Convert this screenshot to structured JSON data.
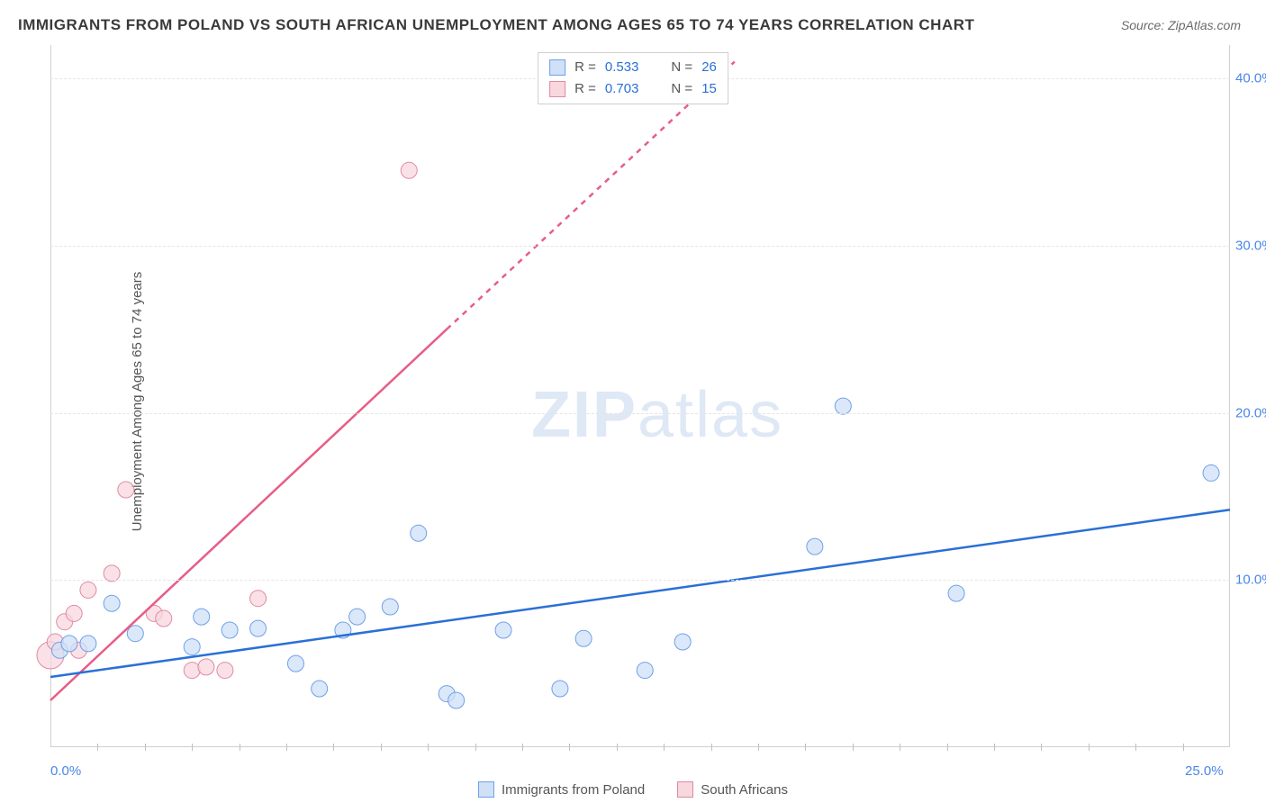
{
  "title": "IMMIGRANTS FROM POLAND VS SOUTH AFRICAN UNEMPLOYMENT AMONG AGES 65 TO 74 YEARS CORRELATION CHART",
  "source_prefix": "Source: ",
  "source_name": "ZipAtlas.com",
  "watermark": "ZIPatlas",
  "ylabel": "Unemployment Among Ages 65 to 74 years",
  "chart": {
    "type": "scatter",
    "xlim": [
      0,
      25
    ],
    "ylim": [
      0,
      42
    ],
    "xticks_minor": [
      1,
      2,
      3,
      4,
      5,
      6,
      7,
      8,
      9,
      10,
      11,
      12,
      13,
      14,
      15,
      16,
      17,
      18,
      19,
      20,
      21,
      22,
      23,
      24
    ],
    "yticks": [
      10,
      20,
      30,
      40
    ],
    "ytick_labels": [
      "10.0%",
      "20.0%",
      "30.0%",
      "40.0%"
    ],
    "xtick_labels": [
      {
        "v": 0,
        "t": "0.0%",
        "anchor": "start"
      },
      {
        "v": 25,
        "t": "25.0%",
        "anchor": "end"
      }
    ],
    "background_color": "#ffffff",
    "grid_color": "#e5e5e5",
    "axis_color": "#cfcfcf",
    "tick_color": "#bfbfbf",
    "marker_radius": 9,
    "marker_radius_big": 15,
    "line_width": 2.5,
    "series": [
      {
        "name": "Immigrants from Poland",
        "fill": "#cfe0f7",
        "stroke": "#6fa0e8",
        "line_color": "#2a6fd6",
        "R": "0.533",
        "N": "26",
        "trend": {
          "x1": 0,
          "y1": 4.2,
          "x2": 25,
          "y2": 14.2
        },
        "points": [
          {
            "x": 0.2,
            "y": 5.8
          },
          {
            "x": 0.4,
            "y": 6.2
          },
          {
            "x": 0.8,
            "y": 6.2
          },
          {
            "x": 1.3,
            "y": 8.6
          },
          {
            "x": 1.8,
            "y": 6.8
          },
          {
            "x": 3.0,
            "y": 6.0
          },
          {
            "x": 3.2,
            "y": 7.8
          },
          {
            "x": 3.8,
            "y": 7.0
          },
          {
            "x": 4.4,
            "y": 7.1
          },
          {
            "x": 5.2,
            "y": 5.0
          },
          {
            "x": 5.7,
            "y": 3.5
          },
          {
            "x": 6.2,
            "y": 7.0
          },
          {
            "x": 6.5,
            "y": 7.8
          },
          {
            "x": 7.2,
            "y": 8.4
          },
          {
            "x": 7.8,
            "y": 12.8
          },
          {
            "x": 8.4,
            "y": 3.2
          },
          {
            "x": 8.6,
            "y": 2.8
          },
          {
            "x": 9.6,
            "y": 7.0
          },
          {
            "x": 10.8,
            "y": 3.5
          },
          {
            "x": 11.3,
            "y": 6.5
          },
          {
            "x": 12.6,
            "y": 4.6
          },
          {
            "x": 13.4,
            "y": 6.3
          },
          {
            "x": 16.2,
            "y": 12.0
          },
          {
            "x": 16.8,
            "y": 20.4
          },
          {
            "x": 19.2,
            "y": 9.2
          },
          {
            "x": 24.6,
            "y": 16.4
          }
        ]
      },
      {
        "name": "South Africans",
        "fill": "#f8d7df",
        "stroke": "#e08aa2",
        "line_color": "#e75d86",
        "R": "0.703",
        "N": "15",
        "trend_solid": {
          "x1": 0,
          "y1": 2.8,
          "x2": 8.4,
          "y2": 25.0
        },
        "trend_dash": {
          "x1": 8.4,
          "y1": 25.0,
          "x2": 14.5,
          "y2": 41.0
        },
        "points": [
          {
            "x": 0.0,
            "y": 5.5,
            "big": true
          },
          {
            "x": 0.1,
            "y": 6.3
          },
          {
            "x": 0.3,
            "y": 7.5
          },
          {
            "x": 0.5,
            "y": 8.0
          },
          {
            "x": 0.6,
            "y": 5.8
          },
          {
            "x": 0.8,
            "y": 9.4
          },
          {
            "x": 1.3,
            "y": 10.4
          },
          {
            "x": 1.6,
            "y": 15.4
          },
          {
            "x": 2.2,
            "y": 8.0
          },
          {
            "x": 2.4,
            "y": 7.7
          },
          {
            "x": 3.0,
            "y": 4.6
          },
          {
            "x": 3.3,
            "y": 4.8
          },
          {
            "x": 3.7,
            "y": 4.6
          },
          {
            "x": 4.4,
            "y": 8.9
          },
          {
            "x": 7.6,
            "y": 34.5
          }
        ]
      }
    ]
  },
  "legend_r_label": "R =",
  "legend_n_label": "N ="
}
